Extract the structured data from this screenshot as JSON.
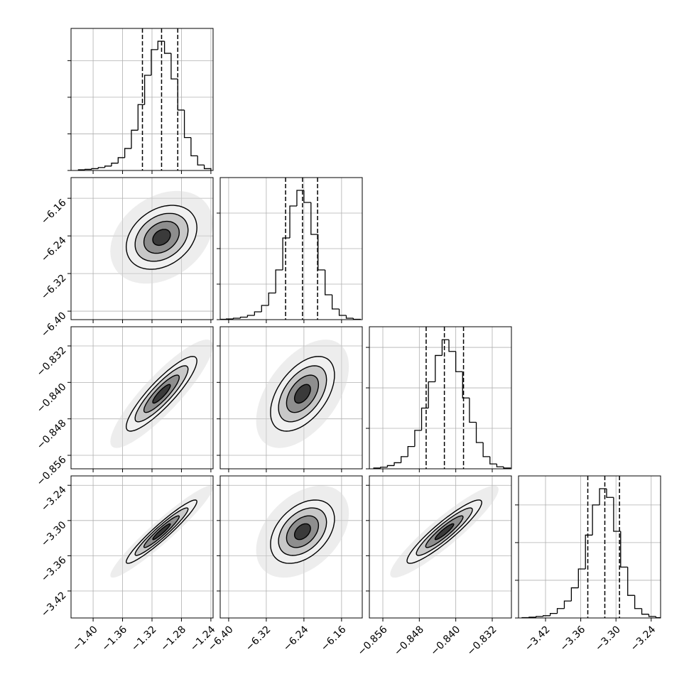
{
  "chart_data": {
    "type": "corner",
    "levels": [
      0.5,
      1,
      1.5,
      2
    ],
    "parameters": [
      {
        "xlim": [
          -1.43,
          -1.237
        ],
        "xticks": [
          {
            "value": -1.4,
            "label": "−1.40"
          },
          {
            "value": -1.36,
            "label": "−1.36"
          },
          {
            "value": -1.32,
            "label": "−1.32"
          },
          {
            "value": -1.28,
            "label": "−1.28"
          },
          {
            "value": -1.24,
            "label": "−1.24"
          }
        ],
        "quantiles": [
          -1.333,
          -1.307,
          -1.285
        ],
        "hist": {
          "bins": [
            -1.42,
            -1.411,
            -1.402,
            -1.393,
            -1.384,
            -1.375,
            -1.366,
            -1.357,
            -1.348,
            -1.339,
            -1.33,
            -1.321,
            -1.312,
            -1.303,
            -1.294,
            -1.285,
            -1.276,
            -1.267,
            -1.258,
            -1.249,
            -1.24
          ],
          "counts": [
            2,
            3,
            5,
            8,
            12,
            20,
            35,
            60,
            110,
            180,
            260,
            330,
            353,
            320,
            250,
            165,
            90,
            40,
            15,
            5
          ],
          "ylim": [
            0,
            388
          ],
          "yticks": [
            0,
            100,
            200,
            300
          ]
        }
      },
      {
        "xlim": [
          -6.418,
          -6.116
        ],
        "xticks": [
          {
            "value": -6.4,
            "label": "−6.40"
          },
          {
            "value": -6.32,
            "label": "−6.32"
          },
          {
            "value": -6.24,
            "label": "−6.24"
          },
          {
            "value": -6.16,
            "label": "−6.16"
          }
        ],
        "quantiles": [
          -6.279,
          -6.243,
          -6.211
        ],
        "hist": {
          "bins": [
            -6.42,
            -6.405,
            -6.39,
            -6.375,
            -6.36,
            -6.345,
            -6.33,
            -6.315,
            -6.3,
            -6.285,
            -6.27,
            -6.255,
            -6.24,
            -6.225,
            -6.21,
            -6.195,
            -6.18,
            -6.165,
            -6.15,
            -6.135,
            -6.12
          ],
          "counts": [
            1,
            2,
            4,
            7,
            12,
            22,
            40,
            75,
            140,
            230,
            320,
            364,
            330,
            240,
            140,
            70,
            30,
            12,
            4,
            1
          ],
          "ylim": [
            0,
            400
          ],
          "yticks": [
            0,
            100,
            200,
            300
          ]
        }
      },
      {
        "xlim": [
          -0.85896,
          -0.82779
        ],
        "xticks": [
          {
            "value": -0.856,
            "label": "−0.856"
          },
          {
            "value": -0.848,
            "label": "−0.848"
          },
          {
            "value": -0.84,
            "label": "−0.840"
          },
          {
            "value": -0.832,
            "label": "−0.832"
          }
        ],
        "quantiles": [
          -0.8465,
          -0.8425,
          -0.8383
        ],
        "hist": {
          "bins": [
            -0.858,
            -0.8565,
            -0.855,
            -0.8535,
            -0.852,
            -0.8505,
            -0.849,
            -0.8475,
            -0.846,
            -0.8445,
            -0.843,
            -0.8415,
            -0.84,
            -0.8385,
            -0.837,
            -0.8355,
            -0.834,
            -0.8325,
            -0.831,
            -0.8295,
            -0.828
          ],
          "counts": [
            2,
            4,
            8,
            15,
            30,
            55,
            95,
            150,
            215,
            280,
            319,
            290,
            240,
            175,
            115,
            65,
            30,
            12,
            5,
            2
          ],
          "ylim": [
            0,
            351
          ],
          "yticks": [
            0,
            100,
            200,
            300
          ]
        }
      },
      {
        "xlim": [
          -3.466,
          -3.224
        ],
        "xticks": [
          {
            "value": -3.42,
            "label": "−3.42"
          },
          {
            "value": -3.36,
            "label": "−3.36"
          },
          {
            "value": -3.3,
            "label": "−3.30"
          },
          {
            "value": -3.24,
            "label": "−3.24"
          }
        ],
        "quantiles": [
          -3.348,
          -3.319,
          -3.294
        ],
        "hist": {
          "bins": [
            -3.46,
            -3.448,
            -3.436,
            -3.424,
            -3.412,
            -3.4,
            -3.388,
            -3.376,
            -3.364,
            -3.352,
            -3.34,
            -3.328,
            -3.316,
            -3.304,
            -3.292,
            -3.28,
            -3.268,
            -3.256,
            -3.244,
            -3.232,
            -3.22
          ],
          "counts": [
            1,
            2,
            4,
            6,
            12,
            25,
            45,
            80,
            130,
            220,
            300,
            343,
            320,
            230,
            135,
            60,
            25,
            10,
            4,
            1
          ],
          "ylim": [
            0,
            377
          ],
          "yticks": [
            0,
            100,
            200,
            300
          ]
        }
      }
    ],
    "correlations": [
      [
        0.3
      ],
      [
        0.88,
        0.5
      ],
      [
        0.95,
        0.4,
        0.92
      ]
    ]
  }
}
